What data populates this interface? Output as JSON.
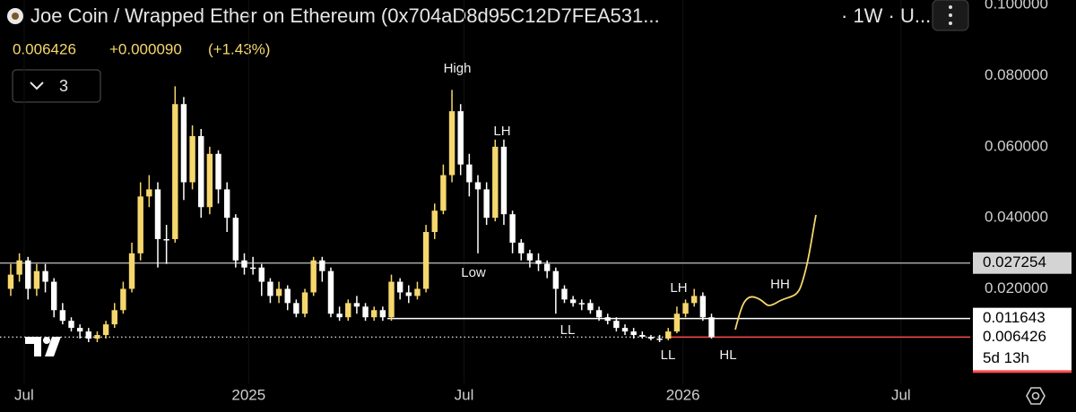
{
  "chart_data": {
    "type": "candlestick",
    "title": "Joe Coin / Wrapped Ether on Ethereum (0x704aD8d95C12D7FEA531...",
    "interval": "· 1W · U...",
    "last_price": "0.006426",
    "change": "+0.000090",
    "change_percent": "(+1.43%)",
    "indicator_count": 3,
    "countdown": "5d 13h",
    "up_color": "#f5d76e",
    "down_color": "#ffffff",
    "ylim": [
      -0.0066,
      0.1013
    ],
    "yticks": [
      {
        "value": 0.1,
        "label": "0.100000"
      },
      {
        "value": 0.08,
        "label": "0.080000"
      },
      {
        "value": 0.06,
        "label": "0.060000"
      },
      {
        "value": 0.04,
        "label": "0.040000"
      },
      {
        "value": 0.02,
        "label": "0.020000"
      }
    ],
    "xlim": [
      -1.24,
      110.9
    ],
    "xticks": [
      {
        "value": 1.55,
        "label": "Jul"
      },
      {
        "value": 27.5,
        "label": "2025"
      },
      {
        "value": 52.4,
        "label": "Jul"
      },
      {
        "value": 77.7,
        "label": "2026"
      },
      {
        "value": 102.9,
        "label": "Jul"
      }
    ],
    "open": [
      0.02,
      0.024,
      0.028,
      0.02,
      0.025,
      0.022,
      0.014,
      0.011,
      0.009,
      0.008,
      0.006,
      0.007,
      0.01,
      0.014,
      0.02,
      0.03,
      0.046,
      0.048,
      0.034,
      0.034,
      0.072,
      0.05,
      0.063,
      0.043,
      0.058,
      0.048,
      0.04,
      0.028,
      0.026,
      0.026,
      0.022,
      0.018,
      0.02,
      0.016,
      0.013,
      0.019,
      0.028,
      0.025,
      0.013,
      0.012,
      0.016,
      0.015,
      0.012,
      0.014,
      0.012,
      0.022,
      0.019,
      0.018,
      0.02,
      0.036,
      0.042,
      0.052,
      0.07,
      0.055,
      0.05,
      0.048,
      0.04,
      0.06,
      0.041,
      0.033,
      0.03,
      0.028,
      0.027,
      0.025,
      0.02,
      0.017,
      0.016,
      0.016,
      0.014,
      0.012,
      0.011,
      0.009,
      0.008,
      0.007,
      0.0065,
      0.006,
      0.006,
      0.008,
      0.013,
      0.016,
      0.018,
      0.012
    ],
    "high": [
      0.027,
      0.03,
      0.029,
      0.027,
      0.027,
      0.023,
      0.016,
      0.012,
      0.01,
      0.009,
      0.008,
      0.011,
      0.016,
      0.022,
      0.033,
      0.05,
      0.052,
      0.05,
      0.038,
      0.077,
      0.074,
      0.066,
      0.065,
      0.06,
      0.059,
      0.05,
      0.041,
      0.03,
      0.029,
      0.027,
      0.023,
      0.022,
      0.021,
      0.017,
      0.02,
      0.029,
      0.029,
      0.026,
      0.015,
      0.017,
      0.018,
      0.016,
      0.015,
      0.015,
      0.024,
      0.023,
      0.021,
      0.022,
      0.038,
      0.044,
      0.055,
      0.076,
      0.072,
      0.058,
      0.052,
      0.05,
      0.062,
      0.062,
      0.042,
      0.034,
      0.031,
      0.03,
      0.028,
      0.026,
      0.021,
      0.018,
      0.017,
      0.017,
      0.015,
      0.013,
      0.012,
      0.01,
      0.009,
      0.008,
      0.007,
      0.007,
      0.009,
      0.015,
      0.017,
      0.02,
      0.019,
      0.013
    ],
    "low": [
      0.018,
      0.022,
      0.017,
      0.018,
      0.019,
      0.012,
      0.01,
      0.008,
      0.006,
      0.005,
      0.005,
      0.006,
      0.009,
      0.013,
      0.019,
      0.028,
      0.043,
      0.026,
      0.027,
      0.033,
      0.045,
      0.048,
      0.04,
      0.041,
      0.044,
      0.036,
      0.026,
      0.024,
      0.024,
      0.018,
      0.016,
      0.016,
      0.014,
      0.012,
      0.012,
      0.018,
      0.022,
      0.012,
      0.011,
      0.011,
      0.013,
      0.011,
      0.011,
      0.011,
      0.011,
      0.017,
      0.016,
      0.017,
      0.019,
      0.034,
      0.041,
      0.05,
      0.052,
      0.046,
      0.03,
      0.038,
      0.039,
      0.038,
      0.03,
      0.028,
      0.026,
      0.025,
      0.023,
      0.013,
      0.016,
      0.015,
      0.014,
      0.013,
      0.011,
      0.01,
      0.008,
      0.007,
      0.006,
      0.006,
      0.0055,
      0.005,
      0.0055,
      0.0075,
      0.012,
      0.015,
      0.011,
      0.006
    ],
    "close": [
      0.024,
      0.028,
      0.02,
      0.025,
      0.022,
      0.014,
      0.011,
      0.009,
      0.008,
      0.006,
      0.007,
      0.01,
      0.014,
      0.02,
      0.03,
      0.046,
      0.048,
      0.034,
      0.034,
      0.072,
      0.05,
      0.063,
      0.043,
      0.058,
      0.048,
      0.04,
      0.028,
      0.026,
      0.026,
      0.022,
      0.018,
      0.02,
      0.016,
      0.013,
      0.019,
      0.028,
      0.025,
      0.013,
      0.012,
      0.016,
      0.015,
      0.012,
      0.014,
      0.012,
      0.022,
      0.019,
      0.018,
      0.02,
      0.036,
      0.042,
      0.052,
      0.07,
      0.055,
      0.05,
      0.048,
      0.04,
      0.06,
      0.041,
      0.033,
      0.03,
      0.028,
      0.027,
      0.025,
      0.02,
      0.017,
      0.016,
      0.016,
      0.014,
      0.012,
      0.011,
      0.009,
      0.008,
      0.007,
      0.0065,
      0.006,
      0.006,
      0.008,
      0.013,
      0.016,
      0.018,
      0.012,
      0.006426
    ],
    "price_lines": [
      {
        "value": 0.027254,
        "color": "#b0b0b0"
      },
      {
        "value": 0.011643,
        "color": "#ffffff"
      },
      {
        "value": 0.006426,
        "color": "#ff4d4d"
      }
    ],
    "annotations": [
      "High",
      "LH",
      "Low",
      "LL",
      "LL",
      "HL",
      "LH",
      "HH"
    ]
  }
}
